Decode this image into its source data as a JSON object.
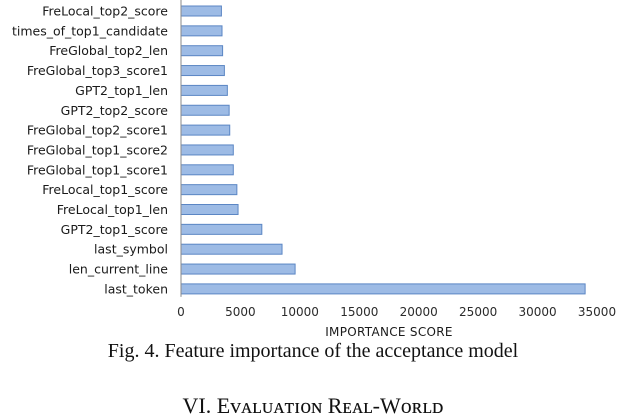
{
  "chart_data": {
    "type": "bar",
    "orientation": "horizontal",
    "categories": [
      "FreLocal_top2_score",
      "times_of_top1_candidate",
      "FreGlobal_top2_len",
      "FreGlobal_top3_score1",
      "GPT2_top1_len",
      "GPT2_top2_score",
      "FreGlobal_top2_score1",
      "FreGlobal_top1_score2",
      "FreGlobal_top1_score1",
      "FreLocal_top1_score",
      "FreLocal_top1_len",
      "GPT2_top1_score",
      "last_symbol",
      "len_current_line",
      "last_token"
    ],
    "values": [
      3400,
      3450,
      3500,
      3650,
      3900,
      4050,
      4100,
      4400,
      4400,
      4700,
      4800,
      6800,
      8500,
      9600,
      34000
    ],
    "xlabel": "IMPORTANCE SCORE",
    "ylabel": "",
    "xlim": [
      0,
      35000
    ],
    "xticks": [
      0,
      5000,
      10000,
      15000,
      20000,
      25000,
      30000,
      35000
    ],
    "xtick_labels": [
      "0",
      "5000",
      "10000",
      "15000",
      "20000",
      "25000",
      "30000",
      "35000"
    ],
    "grid": false,
    "bar_color": "#9dbbe5",
    "bar_edge_color": "#5b86c4"
  },
  "caption": "Fig. 4.   Feature importance of the acceptance model",
  "next_section": "VI.  Eᴠᴀʟᴜᴀᴛɪᴏɴ Rᴇᴀʟ-Wᴏʀʟᴅ"
}
